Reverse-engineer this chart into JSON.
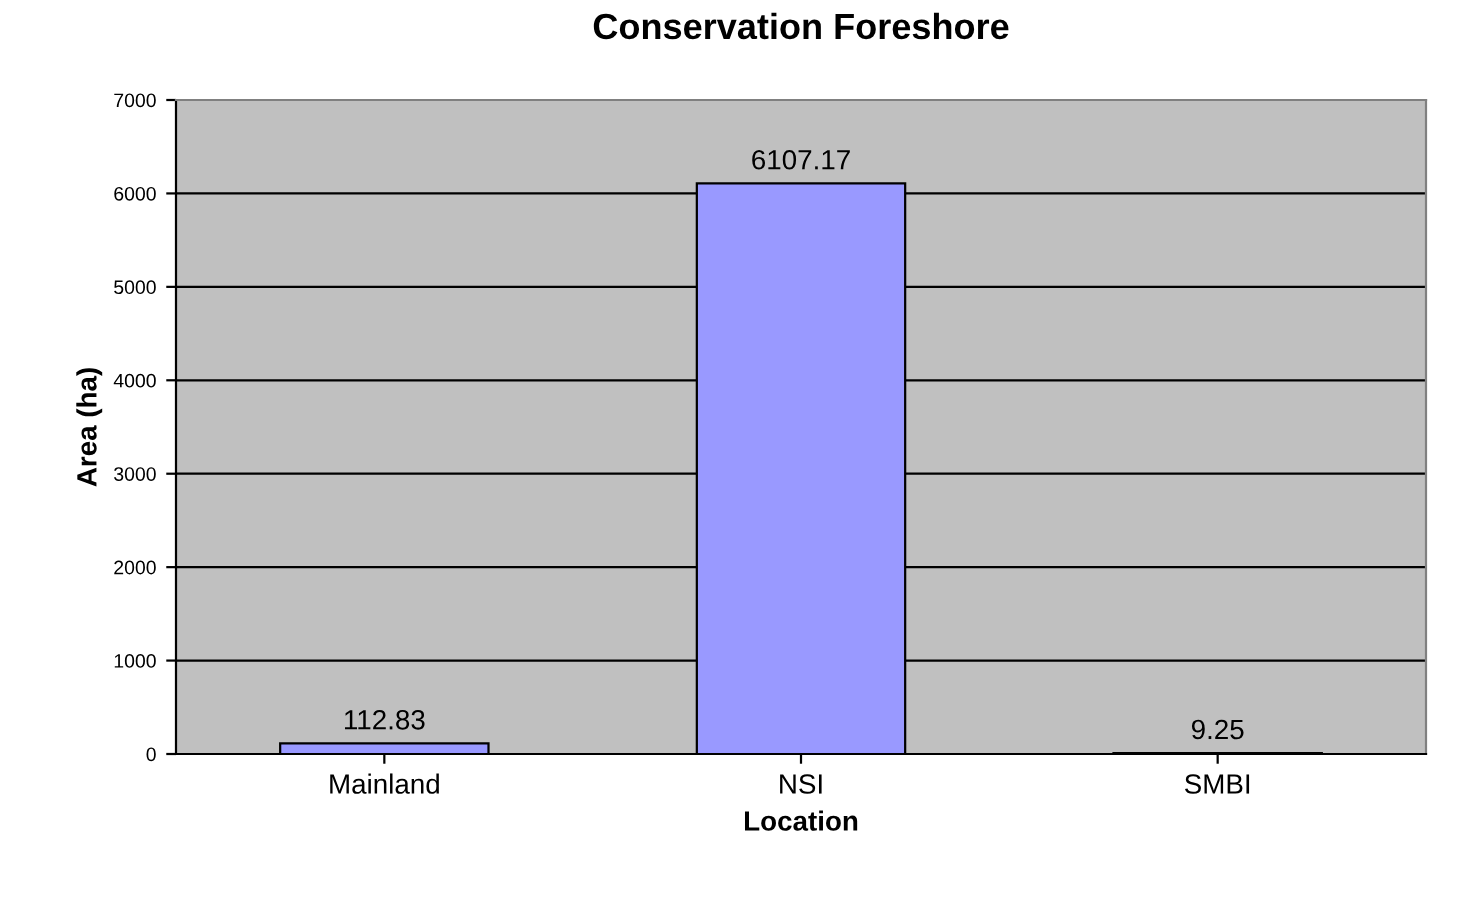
{
  "chart_data": {
    "type": "bar",
    "title": "Conservation Foreshore",
    "xlabel": "Location",
    "ylabel": "Area (ha)",
    "categories": [
      "Mainland",
      "NSI",
      "SMBI"
    ],
    "values": [
      112.83,
      6107.17,
      9.25
    ],
    "color": "#9999ff",
    "ylim": [
      0,
      7000
    ],
    "yticks": [
      0,
      1000,
      2000,
      3000,
      4000,
      5000,
      6000,
      7000
    ],
    "grid": "y",
    "data_labels": true,
    "legend": false
  }
}
